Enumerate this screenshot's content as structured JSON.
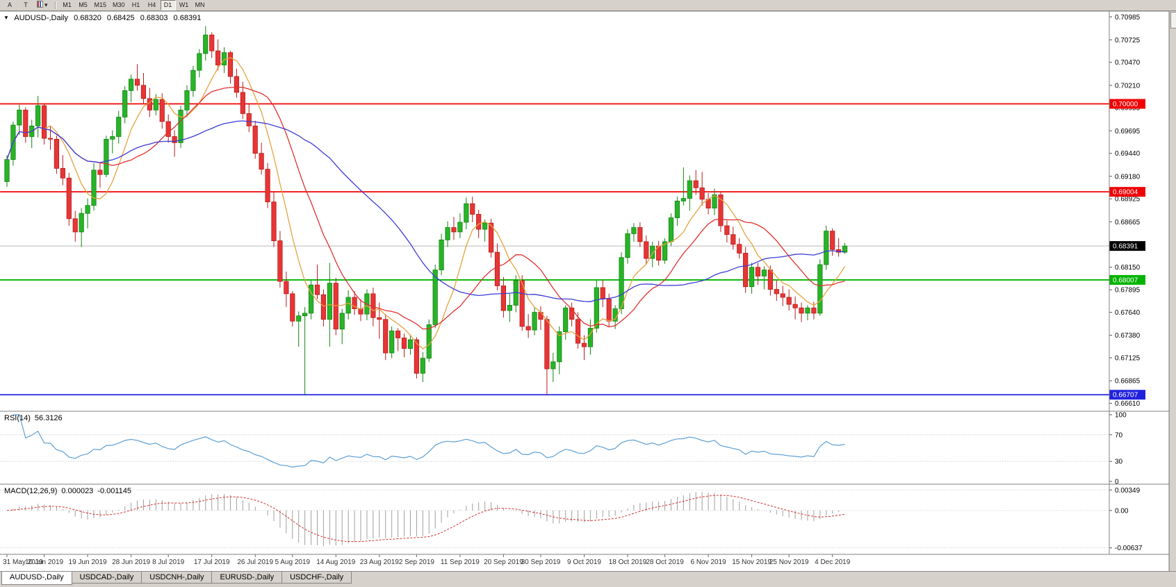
{
  "colors": {
    "up": "#28b428",
    "up_border": "#128412",
    "down": "#e83535",
    "down_border": "#b71c1c",
    "hline_red": "#f00000",
    "hline_green": "#00b300",
    "hline_blue": "#2222dd",
    "current_badge": "#000000",
    "rsi": "#5c9fd6",
    "macd_hist": "#9f9f9f",
    "macd_signal": "#d23030",
    "panel_bg": "#ffffff",
    "toolbar_bg": "#d6d2cb",
    "separator": "#7f7f7f"
  },
  "toolbar": {
    "tools": [
      {
        "name": "arrow-tool",
        "label": "A"
      },
      {
        "name": "text-tool",
        "label": "T"
      },
      {
        "name": "template-tool",
        "label": "▾"
      }
    ],
    "timeframes": [
      {
        "label": "M1"
      },
      {
        "label": "M5"
      },
      {
        "label": "M15"
      },
      {
        "label": "M30"
      },
      {
        "label": "H1"
      },
      {
        "label": "H4"
      },
      {
        "label": "D1",
        "active": true
      },
      {
        "label": "W1"
      },
      {
        "label": "MN"
      }
    ]
  },
  "chart": {
    "symbol_info": {
      "arrow": "▼",
      "symbol": "AUDUSD-,Daily",
      "open": "0.68320",
      "high": "0.68425",
      "low": "0.68303",
      "close": "0.68391"
    },
    "chart_data": {
      "type": "candlestick",
      "y_range": [
        0.6652,
        0.7105
      ],
      "y_ticks": [
        "0.70985",
        "0.70725",
        "0.70470",
        "0.70210",
        "0.69955",
        "0.69695",
        "0.69440",
        "0.69180",
        "0.68925",
        "0.68665",
        "0.68405",
        "0.68150",
        "0.67895",
        "0.67640",
        "0.67380",
        "0.67125",
        "0.66865",
        "0.66610"
      ],
      "h_lines": [
        {
          "v": 0.7,
          "t": "0.70000",
          "color": "#f00000"
        },
        {
          "v": 0.69004,
          "t": "0.69004",
          "color": "#f00000"
        },
        {
          "v": 0.68007,
          "t": "0.68007",
          "color": "#00b300"
        },
        {
          "v": 0.66707,
          "t": "0.66707",
          "color": "#2222dd"
        }
      ],
      "current_price": {
        "v": 0.68391,
        "t": "0.68391"
      },
      "moving_averages": [
        {
          "period": 7,
          "color": "#e6a23c",
          "name": "ma-fast-orange"
        },
        {
          "period": 15,
          "color": "#e03030",
          "name": "ma-mid-red"
        },
        {
          "period": 34,
          "color": "#3b3bd6",
          "name": "ma-slow-blue"
        }
      ],
      "x_labels": [
        [
          0,
          "31 May 2019"
        ],
        [
          6,
          "10 Jun 2019"
        ],
        [
          13,
          "19 Jun 2019"
        ],
        [
          20,
          "28 Jun 2019"
        ],
        [
          26,
          "8 Jul 2019"
        ],
        [
          33,
          "17 Jul 2019"
        ],
        [
          40,
          "26 Jul 2019"
        ],
        [
          46,
          "5 Aug 2019"
        ],
        [
          53,
          "14 Aug 2019"
        ],
        [
          60,
          "23 Aug 2019"
        ],
        [
          66,
          "2 Sep 2019"
        ],
        [
          73,
          "11 Sep 2019"
        ],
        [
          80,
          "20 Sep 2019"
        ],
        [
          86,
          "30 Sep 2019"
        ],
        [
          93,
          "9 Oct 2019"
        ],
        [
          100,
          "18 Oct 2019"
        ],
        [
          106,
          "28 Oct 2019"
        ],
        [
          113,
          "6 Nov 2019"
        ],
        [
          120,
          "15 Nov 2019"
        ],
        [
          126,
          "25 Nov 2019"
        ],
        [
          133,
          "4 Dec 2019"
        ]
      ],
      "ohlc": [
        [
          0.6912,
          0.6942,
          0.6906,
          0.6937
        ],
        [
          0.6937,
          0.698,
          0.693,
          0.6976
        ],
        [
          0.6976,
          0.6999,
          0.6965,
          0.6993
        ],
        [
          0.6993,
          0.6996,
          0.6956,
          0.6963
        ],
        [
          0.6963,
          0.6982,
          0.695,
          0.6975
        ],
        [
          0.6975,
          0.7009,
          0.6962,
          0.6998
        ],
        [
          0.6998,
          0.7,
          0.6954,
          0.6961
        ],
        [
          0.6961,
          0.6975,
          0.6948,
          0.696
        ],
        [
          0.696,
          0.6964,
          0.6921,
          0.6927
        ],
        [
          0.6927,
          0.6942,
          0.6908,
          0.6916
        ],
        [
          0.6916,
          0.6922,
          0.6862,
          0.687
        ],
        [
          0.687,
          0.6879,
          0.6844,
          0.6855
        ],
        [
          0.6855,
          0.6882,
          0.6838,
          0.6876
        ],
        [
          0.6876,
          0.6893,
          0.6859,
          0.6885
        ],
        [
          0.6885,
          0.6933,
          0.6879,
          0.6925
        ],
        [
          0.6925,
          0.6934,
          0.6905,
          0.692
        ],
        [
          0.692,
          0.6964,
          0.6917,
          0.696
        ],
        [
          0.696,
          0.697,
          0.6944,
          0.6963
        ],
        [
          0.6963,
          0.6992,
          0.6955,
          0.6985
        ],
        [
          0.6985,
          0.702,
          0.6978,
          0.7015
        ],
        [
          0.7015,
          0.7033,
          0.7002,
          0.7028
        ],
        [
          0.7028,
          0.7045,
          0.7015,
          0.7021
        ],
        [
          0.7021,
          0.7035,
          0.7,
          0.7006
        ],
        [
          0.7006,
          0.7018,
          0.6985,
          0.6993
        ],
        [
          0.6993,
          0.7011,
          0.6987,
          0.7005
        ],
        [
          0.7005,
          0.7012,
          0.6972,
          0.698
        ],
        [
          0.698,
          0.6988,
          0.6956,
          0.6963
        ],
        [
          0.6963,
          0.697,
          0.694,
          0.6956
        ],
        [
          0.6956,
          0.6998,
          0.695,
          0.6993
        ],
        [
          0.6993,
          0.7021,
          0.6985,
          0.7015
        ],
        [
          0.7015,
          0.7043,
          0.7008,
          0.7038
        ],
        [
          0.7038,
          0.7062,
          0.703,
          0.7057
        ],
        [
          0.7057,
          0.7088,
          0.7049,
          0.7078
        ],
        [
          0.7078,
          0.7081,
          0.7052,
          0.706
        ],
        [
          0.706,
          0.7073,
          0.7038,
          0.7044
        ],
        [
          0.7044,
          0.7064,
          0.7035,
          0.7058
        ],
        [
          0.7058,
          0.706,
          0.7023,
          0.7031
        ],
        [
          0.7031,
          0.704,
          0.7007,
          0.7013
        ],
        [
          0.7013,
          0.7025,
          0.6983,
          0.6989
        ],
        [
          0.6989,
          0.7,
          0.6968,
          0.6975
        ],
        [
          0.6975,
          0.6981,
          0.6938,
          0.6944
        ],
        [
          0.6944,
          0.6956,
          0.692,
          0.6926
        ],
        [
          0.6926,
          0.6933,
          0.6882,
          0.6889
        ],
        [
          0.6889,
          0.69,
          0.6838,
          0.6845
        ],
        [
          0.6845,
          0.6856,
          0.6792,
          0.6799
        ],
        [
          0.6799,
          0.681,
          0.677,
          0.6785
        ],
        [
          0.6785,
          0.6788,
          0.6748,
          0.6754
        ],
        [
          0.6754,
          0.6765,
          0.6725,
          0.676
        ],
        [
          0.676,
          0.677,
          0.6671,
          0.6763
        ],
        [
          0.6763,
          0.68,
          0.6756,
          0.6795
        ],
        [
          0.6795,
          0.6818,
          0.6779,
          0.6784
        ],
        [
          0.6784,
          0.679,
          0.6748,
          0.6756
        ],
        [
          0.6756,
          0.682,
          0.6725,
          0.6797
        ],
        [
          0.6797,
          0.6803,
          0.6738,
          0.6745
        ],
        [
          0.6745,
          0.6768,
          0.6728,
          0.6763
        ],
        [
          0.6763,
          0.6789,
          0.6756,
          0.6781
        ],
        [
          0.6781,
          0.6788,
          0.6761,
          0.6768
        ],
        [
          0.6768,
          0.6779,
          0.6754,
          0.6762
        ],
        [
          0.6762,
          0.679,
          0.6755,
          0.6785
        ],
        [
          0.6785,
          0.6792,
          0.6748,
          0.6758
        ],
        [
          0.6758,
          0.6775,
          0.6734,
          0.6756
        ],
        [
          0.6756,
          0.6762,
          0.671,
          0.6718
        ],
        [
          0.6718,
          0.6748,
          0.6712,
          0.6743
        ],
        [
          0.6743,
          0.6746,
          0.672,
          0.6735
        ],
        [
          0.6735,
          0.674,
          0.6713,
          0.6723
        ],
        [
          0.6723,
          0.6739,
          0.6716,
          0.6733
        ],
        [
          0.6733,
          0.6736,
          0.6689,
          0.6695
        ],
        [
          0.6695,
          0.6719,
          0.6685,
          0.6712
        ],
        [
          0.6712,
          0.6756,
          0.6708,
          0.675
        ],
        [
          0.675,
          0.6818,
          0.6746,
          0.6812
        ],
        [
          0.6812,
          0.6853,
          0.6806,
          0.6846
        ],
        [
          0.6846,
          0.6867,
          0.6838,
          0.686
        ],
        [
          0.686,
          0.6872,
          0.6846,
          0.6855
        ],
        [
          0.6855,
          0.6876,
          0.6848,
          0.6866
        ],
        [
          0.6866,
          0.6894,
          0.6858,
          0.6887
        ],
        [
          0.6887,
          0.6895,
          0.6866,
          0.6875
        ],
        [
          0.6875,
          0.688,
          0.6848,
          0.6858
        ],
        [
          0.6858,
          0.6869,
          0.6844,
          0.6865
        ],
        [
          0.6865,
          0.687,
          0.6826,
          0.6832
        ],
        [
          0.6832,
          0.6842,
          0.6789,
          0.6794
        ],
        [
          0.6794,
          0.6804,
          0.6758,
          0.6766
        ],
        [
          0.6766,
          0.6785,
          0.6753,
          0.6772
        ],
        [
          0.6772,
          0.6806,
          0.6764,
          0.68
        ],
        [
          0.68,
          0.6806,
          0.6743,
          0.6748
        ],
        [
          0.6748,
          0.6762,
          0.6735,
          0.6744
        ],
        [
          0.6744,
          0.677,
          0.6738,
          0.6764
        ],
        [
          0.6764,
          0.6771,
          0.6744,
          0.6756
        ],
        [
          0.6756,
          0.676,
          0.667,
          0.67
        ],
        [
          0.67,
          0.6718,
          0.6685,
          0.6708
        ],
        [
          0.6708,
          0.6748,
          0.6694,
          0.6742
        ],
        [
          0.6742,
          0.6772,
          0.6733,
          0.6769
        ],
        [
          0.6769,
          0.6775,
          0.6748,
          0.6756
        ],
        [
          0.6756,
          0.6764,
          0.6723,
          0.6729
        ],
        [
          0.6729,
          0.6738,
          0.671,
          0.6725
        ],
        [
          0.6725,
          0.6756,
          0.6716,
          0.6746
        ],
        [
          0.6746,
          0.68,
          0.6741,
          0.6792
        ],
        [
          0.6792,
          0.6801,
          0.677,
          0.6779
        ],
        [
          0.6779,
          0.6785,
          0.6748,
          0.6754
        ],
        [
          0.6754,
          0.6772,
          0.6745,
          0.6768
        ],
        [
          0.6768,
          0.6832,
          0.6762,
          0.6826
        ],
        [
          0.6826,
          0.6858,
          0.6819,
          0.6853
        ],
        [
          0.6853,
          0.6865,
          0.6844,
          0.686
        ],
        [
          0.686,
          0.6866,
          0.6838,
          0.6844
        ],
        [
          0.6844,
          0.6851,
          0.6818,
          0.6825
        ],
        [
          0.6825,
          0.6844,
          0.6815,
          0.6839
        ],
        [
          0.6839,
          0.6845,
          0.6817,
          0.6823
        ],
        [
          0.6823,
          0.6848,
          0.6819,
          0.6844
        ],
        [
          0.6844,
          0.6876,
          0.6839,
          0.6871
        ],
        [
          0.6871,
          0.6895,
          0.6862,
          0.689
        ],
        [
          0.689,
          0.6928,
          0.6885,
          0.6893
        ],
        [
          0.6893,
          0.6919,
          0.6879,
          0.6913
        ],
        [
          0.6913,
          0.6925,
          0.6897,
          0.6905
        ],
        [
          0.6905,
          0.6923,
          0.6885,
          0.6892
        ],
        [
          0.6892,
          0.6899,
          0.6875,
          0.6882
        ],
        [
          0.6882,
          0.6904,
          0.6874,
          0.6897
        ],
        [
          0.6897,
          0.6901,
          0.6855,
          0.6862
        ],
        [
          0.6862,
          0.6868,
          0.6843,
          0.6852
        ],
        [
          0.6852,
          0.6861,
          0.6835,
          0.6841
        ],
        [
          0.6841,
          0.6848,
          0.6825,
          0.6831
        ],
        [
          0.6831,
          0.6838,
          0.6786,
          0.6793
        ],
        [
          0.6793,
          0.682,
          0.6785,
          0.6815
        ],
        [
          0.6815,
          0.682,
          0.6795,
          0.6805
        ],
        [
          0.6805,
          0.6816,
          0.679,
          0.6812
        ],
        [
          0.6812,
          0.6817,
          0.6783,
          0.679
        ],
        [
          0.679,
          0.68,
          0.6777,
          0.6785
        ],
        [
          0.6785,
          0.6794,
          0.6771,
          0.6781
        ],
        [
          0.6781,
          0.679,
          0.6766,
          0.6773
        ],
        [
          0.6773,
          0.6782,
          0.6756,
          0.6769
        ],
        [
          0.6769,
          0.6775,
          0.6753,
          0.6763
        ],
        [
          0.6763,
          0.6772,
          0.6755,
          0.6769
        ],
        [
          0.6769,
          0.6776,
          0.6756,
          0.6763
        ],
        [
          0.6763,
          0.6824,
          0.676,
          0.6818
        ],
        [
          0.6818,
          0.6862,
          0.6812,
          0.6856
        ],
        [
          0.6856,
          0.6859,
          0.6828,
          0.6835
        ],
        [
          0.6835,
          0.6848,
          0.6827,
          0.6832
        ],
        [
          0.6832,
          0.68425,
          0.68303,
          0.68391
        ]
      ]
    }
  },
  "rsi_panel": {
    "name": "RSI(14)",
    "value": "56.3126",
    "period": 14,
    "levels": [
      30,
      70
    ],
    "y_ticks": [
      {
        "v": 100,
        "t": "100"
      },
      {
        "v": 70,
        "t": "70"
      },
      {
        "v": 30,
        "t": "30"
      },
      {
        "v": 0,
        "t": "0"
      }
    ]
  },
  "macd_panel": {
    "name": "MACD(12,26,9)",
    "value_main": "0.000023",
    "value_signal": "-0.001145",
    "fast": 12,
    "slow": 26,
    "signal": 9,
    "y_ticks": [
      {
        "v": 0.00349,
        "t": "0.00349"
      },
      {
        "v": 0,
        "t": "0.00"
      },
      {
        "v": -0.00637,
        "t": "-0.00637"
      }
    ]
  },
  "tabs": [
    {
      "label": "AUDUSD-,Daily",
      "active": true
    },
    {
      "label": "USDCAD-,Daily"
    },
    {
      "label": "USDCNH-,Daily"
    },
    {
      "label": "EURUSD-,Daily"
    },
    {
      "label": "USDCHF-,Daily"
    }
  ]
}
